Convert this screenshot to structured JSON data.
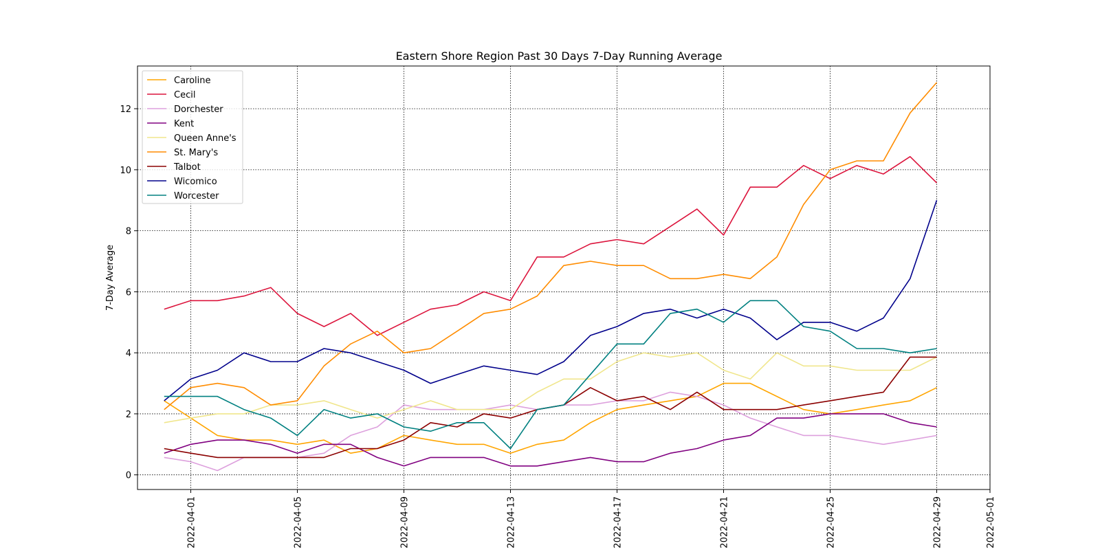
{
  "chart_data": {
    "type": "line",
    "title": "Eastern Shore Region Past 30 Days 7-Day Running Average",
    "xlabel": "",
    "ylabel": "7-Day Average",
    "x": [
      "2022-03-31",
      "2022-04-01",
      "2022-04-02",
      "2022-04-03",
      "2022-04-04",
      "2022-04-05",
      "2022-04-06",
      "2022-04-07",
      "2022-04-08",
      "2022-04-09",
      "2022-04-10",
      "2022-04-11",
      "2022-04-12",
      "2022-04-13",
      "2022-04-14",
      "2022-04-15",
      "2022-04-16",
      "2022-04-17",
      "2022-04-18",
      "2022-04-19",
      "2022-04-20",
      "2022-04-21",
      "2022-04-22",
      "2022-04-23",
      "2022-04-24",
      "2022-04-25",
      "2022-04-26",
      "2022-04-27",
      "2022-04-28",
      "2022-04-29"
    ],
    "xlim": [
      "2022-03-30T00:00",
      "2022-05-01T00:00"
    ],
    "ylim": [
      -0.48,
      13.4
    ],
    "xticks": [
      "2022-04-01",
      "2022-04-05",
      "2022-04-09",
      "2022-04-13",
      "2022-04-17",
      "2022-04-21",
      "2022-04-25",
      "2022-04-29",
      "2022-05-01"
    ],
    "yticks": [
      0,
      2,
      4,
      6,
      8,
      10,
      12
    ],
    "grid": true,
    "legend_position": "top-left",
    "series": [
      {
        "name": "Caroline",
        "color": "#ffa500",
        "values": [
          2.43,
          1.86,
          1.29,
          1.14,
          1.14,
          1.0,
          1.14,
          0.71,
          0.86,
          1.29,
          1.14,
          1.0,
          1.0,
          0.71,
          1.0,
          1.14,
          1.71,
          2.14,
          2.29,
          2.43,
          2.57,
          3.0,
          3.0,
          2.57,
          2.14,
          2.0,
          2.14,
          2.29,
          2.43,
          2.86
        ]
      },
      {
        "name": "Cecil",
        "color": "#dc143c",
        "values": [
          5.43,
          5.71,
          5.71,
          5.86,
          6.14,
          5.29,
          4.86,
          5.29,
          4.57,
          5.0,
          5.43,
          5.57,
          6.0,
          5.71,
          7.14,
          7.14,
          7.57,
          7.71,
          7.57,
          8.14,
          8.71,
          7.86,
          9.43,
          9.43,
          10.14,
          9.71,
          10.14,
          9.86,
          10.43,
          9.57
        ]
      },
      {
        "name": "Dorchester",
        "color": "#dda0dd",
        "values": [
          0.57,
          0.43,
          0.14,
          0.57,
          0.57,
          0.57,
          0.71,
          1.29,
          1.57,
          2.29,
          2.14,
          2.14,
          2.14,
          2.29,
          2.14,
          2.29,
          2.29,
          2.43,
          2.43,
          2.71,
          2.57,
          2.29,
          1.86,
          1.57,
          1.29,
          1.29,
          1.14,
          1.0,
          1.14,
          1.29
        ]
      },
      {
        "name": "Kent",
        "color": "#800080",
        "values": [
          0.71,
          1.0,
          1.14,
          1.14,
          1.0,
          0.71,
          1.0,
          1.0,
          0.57,
          0.29,
          0.57,
          0.57,
          0.57,
          0.29,
          0.29,
          0.43,
          0.57,
          0.43,
          0.43,
          0.71,
          0.86,
          1.14,
          1.29,
          1.86,
          1.86,
          2.0,
          2.0,
          2.0,
          1.71,
          1.57
        ]
      },
      {
        "name": "Queen Anne's",
        "color": "#f0e68c",
        "values": [
          1.71,
          1.86,
          2.0,
          2.0,
          2.29,
          2.29,
          2.43,
          2.14,
          1.86,
          2.14,
          2.43,
          2.14,
          2.14,
          2.14,
          2.71,
          3.14,
          3.14,
          3.71,
          4.0,
          3.86,
          4.0,
          3.43,
          3.14,
          4.0,
          3.57,
          3.57,
          3.43,
          3.43,
          3.43,
          3.86
        ]
      },
      {
        "name": "St. Mary's",
        "color": "#ff8c00",
        "values": [
          2.14,
          2.86,
          3.0,
          2.86,
          2.29,
          2.43,
          3.57,
          4.29,
          4.71,
          4.0,
          4.14,
          4.71,
          5.29,
          5.43,
          5.86,
          6.86,
          7.0,
          6.86,
          6.86,
          6.43,
          6.43,
          6.57,
          6.43,
          7.14,
          8.86,
          10.0,
          10.29,
          10.29,
          11.86,
          12.86
        ]
      },
      {
        "name": "Talbot",
        "color": "#8b0000",
        "values": [
          0.86,
          0.71,
          0.57,
          0.57,
          0.57,
          0.57,
          0.57,
          0.86,
          0.86,
          1.14,
          1.71,
          1.57,
          2.0,
          1.86,
          2.14,
          2.29,
          2.86,
          2.43,
          2.57,
          2.14,
          2.71,
          2.14,
          2.14,
          2.14,
          2.29,
          2.43,
          2.57,
          2.71,
          3.86,
          3.86
        ]
      },
      {
        "name": "Wicomico",
        "color": "#00008b",
        "values": [
          2.43,
          3.14,
          3.43,
          4.0,
          3.71,
          3.71,
          4.14,
          4.0,
          3.71,
          3.43,
          3.0,
          3.29,
          3.57,
          3.43,
          3.29,
          3.71,
          4.57,
          4.86,
          5.29,
          5.43,
          5.14,
          5.43,
          5.14,
          4.43,
          5.0,
          5.0,
          4.71,
          5.14,
          6.43,
          9.0
        ]
      },
      {
        "name": "Worcester",
        "color": "#008080",
        "values": [
          2.57,
          2.57,
          2.57,
          2.14,
          1.86,
          1.29,
          2.14,
          1.86,
          2.0,
          1.57,
          1.43,
          1.71,
          1.71,
          0.86,
          2.14,
          2.29,
          3.29,
          4.29,
          4.29,
          5.29,
          5.43,
          5.0,
          5.71,
          5.71,
          4.86,
          4.71,
          4.14,
          4.14,
          4.0,
          4.14
        ]
      }
    ]
  }
}
